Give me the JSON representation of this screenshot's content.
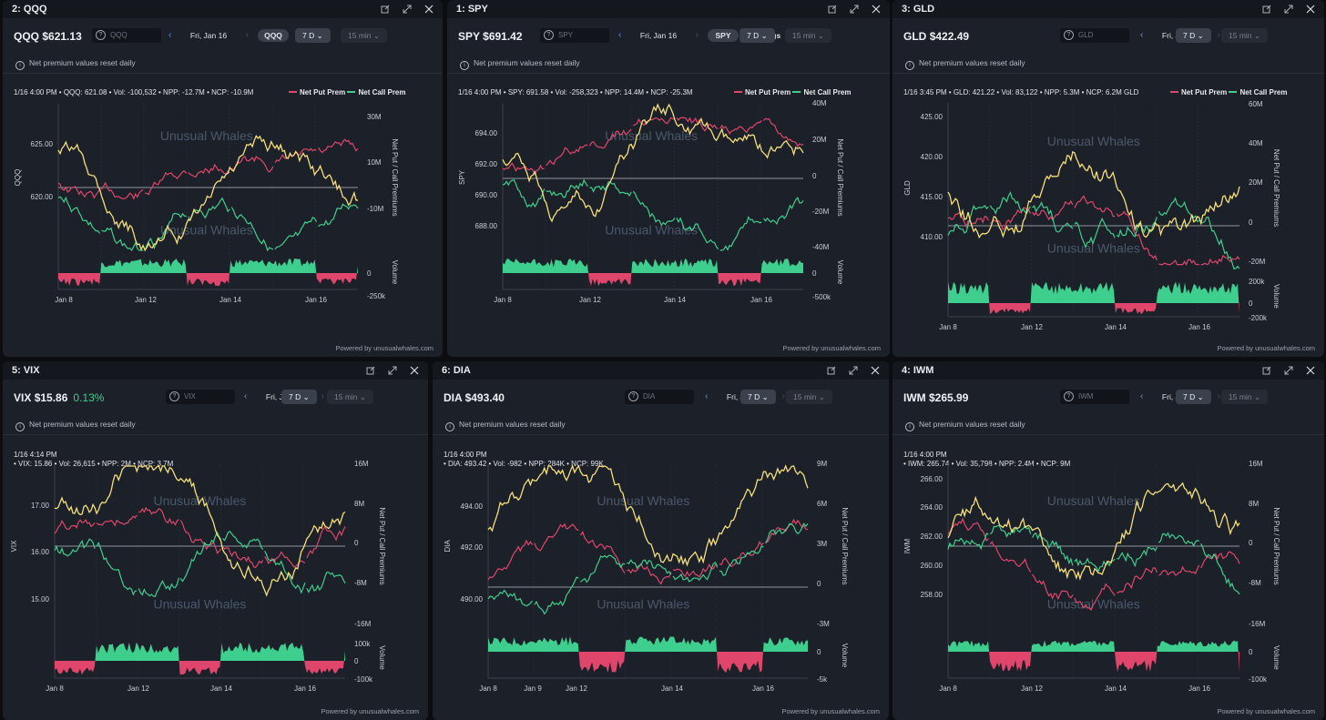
{
  "colors": {
    "yellow": "#f5df7b",
    "red": "#e0466c",
    "green": "#3ecf8e",
    "zero": "#b8bcc4"
  },
  "common": {
    "note": "Net premium values reset daily",
    "powered": "Powered by unusualwhales.com",
    "date": "Fri, Jan 16",
    "range": "7 D",
    "interval": "15 min",
    "legend_put": "Net Put Prem",
    "legend_call": "Net Call Prem",
    "watermark": "Unusual Whales",
    "right_axis_label": "Net Put / Call Premiums",
    "volume_label": "Volume",
    "holdings": "Holdings"
  },
  "panels": [
    {
      "id": "qqq",
      "title": "2: QQQ",
      "ticker": "QQQ",
      "price": "$621.13",
      "pct": "",
      "search": "QQQ",
      "info": "1/16 4:00 PM • QQQ: 621.08 • Vol: -100,532 • NPP: -12.7M • NCP: -10.9M",
      "info2": "",
      "showHoldings": true,
      "yaxis": "QQQ",
      "chart_data": {
        "type": "line",
        "left_ticks": [
          "625.00",
          "620.00"
        ],
        "right_ticks": [
          "30M",
          "10M",
          "-10M"
        ],
        "vol_ticks": [
          "0",
          "-250k"
        ],
        "x_ticks": [
          "Jan 8",
          "Jan 12",
          "Jan 14",
          "Jan 16"
        ]
      }
    },
    {
      "id": "spy",
      "title": "1: SPY",
      "ticker": "SPY",
      "price": "$691.42",
      "pct": "",
      "search": "SPY",
      "info": "1/16 4:00 PM • SPY: 691.58 • Vol: -258,323 • NPP: 14.4M • NCP: -25.3M",
      "info2": "",
      "showHoldings": true,
      "yaxis": "SPY",
      "chart_data": {
        "type": "line",
        "left_ticks": [
          "694.00",
          "692.00",
          "690.00",
          "688.00"
        ],
        "right_ticks": [
          "40M",
          "20M",
          "0",
          "-20M",
          "-40M"
        ],
        "vol_ticks": [
          "0",
          "-500k"
        ],
        "x_ticks": [
          "Jan 8",
          "Jan 12",
          "Jan 14",
          "Jan 16"
        ]
      }
    },
    {
      "id": "gld",
      "title": "3: GLD",
      "ticker": "GLD",
      "price": "$422.49",
      "pct": "",
      "search": "GLD",
      "info": "1/16 3:45 PM • GLD: 421.22 • Vol: 83,122 • NPP: 5.3M • NCP: 6.2M GLD",
      "info2": "",
      "showHoldings": false,
      "yaxis": "GLD",
      "chart_data": {
        "type": "line",
        "left_ticks": [
          "425.00",
          "420.00",
          "415.00",
          "410.00"
        ],
        "right_ticks": [
          "60M",
          "40M",
          "20M",
          "0",
          "-20M"
        ],
        "vol_ticks": [
          "200k",
          "0",
          "-200k"
        ],
        "x_ticks": [
          "Jan 8",
          "Jan 12",
          "Jan 14",
          "Jan 16"
        ]
      }
    },
    {
      "id": "vix",
      "title": "5: VIX",
      "ticker": "VIX",
      "price": "$15.86",
      "pct": "0.13%",
      "search": "VIX",
      "info": "1/16 4:14 PM",
      "info2": "• VIX: 15.86 • Vol: 26,615 • NPP: 2M • NCP: 3.7M",
      "showHoldings": false,
      "yaxis": "VIX",
      "chart_data": {
        "type": "line",
        "left_ticks": [
          "17.00",
          "16.00",
          "15.00"
        ],
        "right_ticks": [
          "16M",
          "8M",
          "0",
          "-8M",
          "-16M"
        ],
        "vol_ticks": [
          "100k",
          "0",
          "-100k"
        ],
        "x_ticks": [
          "Jan 8",
          "Jan 12",
          "Jan 14",
          "Jan 16"
        ]
      }
    },
    {
      "id": "dia",
      "title": "6: DIA",
      "ticker": "DIA",
      "price": "$493.40",
      "pct": "",
      "search": "DIA",
      "info": "1/16 4:00 PM",
      "info2": "• DIA: 493.42 • Vol: -982 • NPP: 284K • NCP: 99K",
      "showHoldings": false,
      "yaxis": "DIA",
      "chart_data": {
        "type": "line",
        "left_ticks": [
          "494.00",
          "492.00",
          "490.00"
        ],
        "right_ticks": [
          "9M",
          "6M",
          "3M",
          "0",
          "-3M"
        ],
        "vol_ticks": [
          "0",
          "-5k"
        ],
        "x_ticks": [
          "Jan 8",
          "Jan 9",
          "Jan 12",
          "Jan 14",
          "Jan 16"
        ]
      }
    },
    {
      "id": "iwm",
      "title": "4: IWM",
      "ticker": "IWM",
      "price": "$265.99",
      "pct": "",
      "search": "IWM",
      "info": "1/16 4:00 PM",
      "info2": "• IWM: 265.74 • Vol: 35,798 • NPP: 2.4M • NCP: 9M",
      "showHoldings": false,
      "yaxis": "IWM",
      "chart_data": {
        "type": "line",
        "left_ticks": [
          "266.00",
          "264.00",
          "262.00",
          "260.00",
          "258.00"
        ],
        "right_ticks": [
          "16M",
          "8M",
          "0",
          "-8M",
          "-16M"
        ],
        "vol_ticks": [
          "0",
          "-100k"
        ],
        "x_ticks": [
          "Jan 8",
          "Jan 12",
          "Jan 14",
          "Jan 16"
        ]
      }
    }
  ]
}
